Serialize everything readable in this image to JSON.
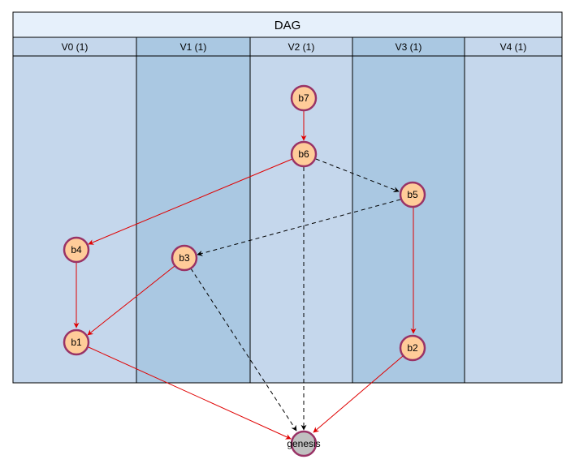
{
  "title": "DAG",
  "columns": [
    {
      "id": "v0",
      "label": "V0 (1)",
      "fill": "#c5d7ec"
    },
    {
      "id": "v1",
      "label": "V1 (1)",
      "fill": "#aac8e2"
    },
    {
      "id": "v2",
      "label": "V2 (1)",
      "fill": "#c5d7ec"
    },
    {
      "id": "v3",
      "label": "V3 (1)",
      "fill": "#aac8e2"
    },
    {
      "id": "v4",
      "label": "V4 (1)",
      "fill": "#c5d7ec"
    }
  ],
  "nodes": [
    {
      "id": "b7",
      "label": "b7"
    },
    {
      "id": "b6",
      "label": "b6"
    },
    {
      "id": "b5",
      "label": "b5"
    },
    {
      "id": "b4",
      "label": "b4"
    },
    {
      "id": "b3",
      "label": "b3"
    },
    {
      "id": "b1",
      "label": "b1"
    },
    {
      "id": "b2",
      "label": "b2"
    },
    {
      "id": "genesis",
      "label": "genesis"
    }
  ],
  "edges": [
    {
      "from": "b7",
      "to": "b6",
      "style": "solid"
    },
    {
      "from": "b6",
      "to": "b4",
      "style": "solid"
    },
    {
      "from": "b6",
      "to": "b5",
      "style": "dashed"
    },
    {
      "from": "b6",
      "to": "genesis",
      "style": "dashed"
    },
    {
      "from": "b5",
      "to": "b3",
      "style": "dashed"
    },
    {
      "from": "b5",
      "to": "b2",
      "style": "solid"
    },
    {
      "from": "b4",
      "to": "b1",
      "style": "solid"
    },
    {
      "from": "b3",
      "to": "b1",
      "style": "solid"
    },
    {
      "from": "b3",
      "to": "genesis",
      "style": "dashed"
    },
    {
      "from": "b1",
      "to": "genesis",
      "style": "solid"
    },
    {
      "from": "b2",
      "to": "genesis",
      "style": "solid"
    }
  ],
  "colors": {
    "header_fill": "#e6f0fb",
    "border": "#000000",
    "node_fill": "#ffcc99",
    "node_stroke": "#993366",
    "genesis_fill": "#c0c0c0",
    "solid_edge": "#e00000",
    "dashed_edge": "#000000"
  }
}
